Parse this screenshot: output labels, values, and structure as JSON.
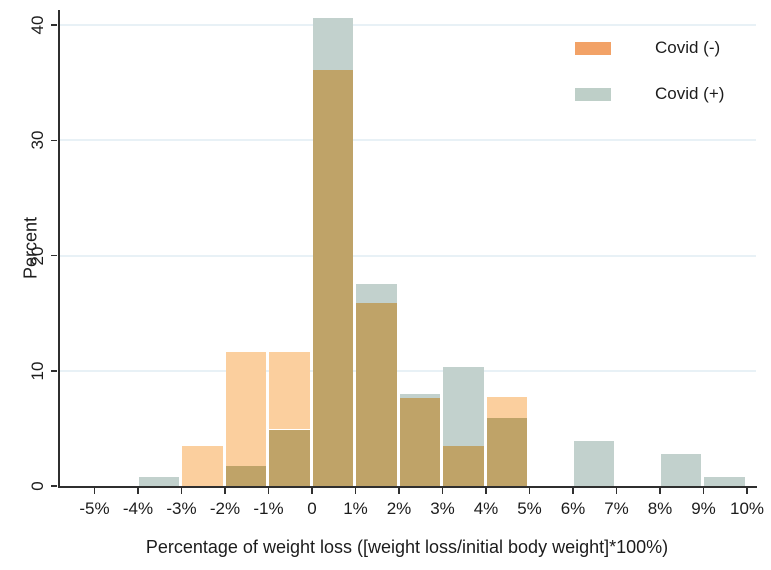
{
  "chart_data": {
    "type": "bar",
    "subtype": "overlaid-histogram",
    "title": "",
    "xlabel": "Percentage of weight loss ([weight loss/initial body weight]*100%)",
    "ylabel": "Percent",
    "xlim": [
      -5,
      10
    ],
    "ylim": [
      0,
      41.3
    ],
    "bin_width_pct": 1,
    "grid": true,
    "x_ticks": [
      "-5%",
      "-4%",
      "-3%",
      "-2%",
      "-1%",
      "0",
      "1%",
      "2%",
      "3%",
      "4%",
      "5%",
      "6%",
      "7%",
      "8%",
      "9%",
      "10%"
    ],
    "y_ticks": [
      0,
      10,
      20,
      30,
      40
    ],
    "y_tick_labels": [
      "0",
      "10",
      "20",
      "30",
      "40"
    ],
    "bin_starts": [
      -5,
      -4,
      -3,
      -2,
      -1,
      0,
      1,
      2,
      3,
      4,
      5,
      6,
      7,
      8,
      9
    ],
    "series": [
      {
        "name": "Covid (-)",
        "fill_color": "#FBCF9E",
        "legend_color": "#F2A267",
        "values": [
          0,
          0,
          3.5,
          11.6,
          11.6,
          36.1,
          15.9,
          7.6,
          3.5,
          7.7,
          0,
          0,
          0,
          0,
          0
        ]
      },
      {
        "name": "Covid (+)",
        "fill_color": "#C2D1CD",
        "legend_color": "#BECFC8",
        "values": [
          0,
          0.8,
          0,
          1.7,
          4.9,
          40.6,
          17.5,
          8.0,
          10.3,
          5.9,
          0,
          3.9,
          0,
          2.8,
          0.8
        ]
      }
    ],
    "overlap_color": "#BFA368",
    "legend_position": "top-right",
    "gridline_color": "#E8F1F6",
    "axis_color": "#2F2F2F"
  }
}
